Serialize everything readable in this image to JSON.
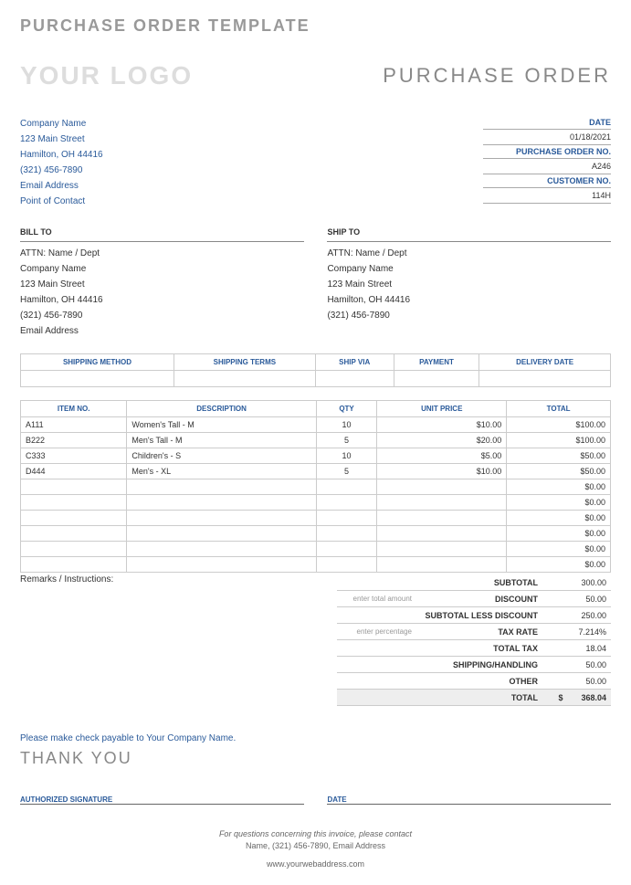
{
  "page_title": "PURCHASE ORDER TEMPLATE",
  "logo_text": "YOUR LOGO",
  "doc_title": "PURCHASE ORDER",
  "company": {
    "name": "Company Name",
    "street": "123 Main Street",
    "city": "Hamilton, OH 44416",
    "phone": "(321) 456-7890",
    "email": "Email Address",
    "contact": "Point of Contact"
  },
  "meta": {
    "date_label": "DATE",
    "date": "01/18/2021",
    "po_label": "PURCHASE ORDER NO.",
    "po": "A246",
    "cust_label": "CUSTOMER NO.",
    "cust": "114H"
  },
  "bill": {
    "title": "BILL TO",
    "attn": "ATTN: Name / Dept",
    "company": "Company Name",
    "street": "123 Main Street",
    "city": "Hamilton, OH 44416",
    "phone": "(321) 456-7890",
    "email": "Email Address"
  },
  "ship": {
    "title": "SHIP TO",
    "attn": "ATTN: Name / Dept",
    "company": "Company Name",
    "street": "123 Main Street",
    "city": "Hamilton, OH 44416",
    "phone": "(321) 456-7890"
  },
  "ship_headers": [
    "SHIPPING METHOD",
    "SHIPPING TERMS",
    "SHIP VIA",
    "PAYMENT",
    "DELIVERY DATE"
  ],
  "item_headers": [
    "ITEM NO.",
    "DESCRIPTION",
    "QTY",
    "UNIT PRICE",
    "TOTAL"
  ],
  "items": [
    {
      "no": "A111",
      "desc": "Women's Tall - M",
      "qty": "10",
      "price": "$10.00",
      "total": "$100.00"
    },
    {
      "no": "B222",
      "desc": "Men's Tall - M",
      "qty": "5",
      "price": "$20.00",
      "total": "$100.00"
    },
    {
      "no": "C333",
      "desc": "Children's - S",
      "qty": "10",
      "price": "$5.00",
      "total": "$50.00"
    },
    {
      "no": "D444",
      "desc": "Men's - XL",
      "qty": "5",
      "price": "$10.00",
      "total": "$50.00"
    },
    {
      "no": "",
      "desc": "",
      "qty": "",
      "price": "",
      "total": "$0.00"
    },
    {
      "no": "",
      "desc": "",
      "qty": "",
      "price": "",
      "total": "$0.00"
    },
    {
      "no": "",
      "desc": "",
      "qty": "",
      "price": "",
      "total": "$0.00"
    },
    {
      "no": "",
      "desc": "",
      "qty": "",
      "price": "",
      "total": "$0.00"
    },
    {
      "no": "",
      "desc": "",
      "qty": "",
      "price": "",
      "total": "$0.00"
    },
    {
      "no": "",
      "desc": "",
      "qty": "",
      "price": "",
      "total": "$0.00"
    }
  ],
  "remarks_label": "Remarks / Instructions:",
  "totals": {
    "subtotal_lbl": "SUBTOTAL",
    "subtotal": "300.00",
    "discount_hint": "enter total amount",
    "discount_lbl": "DISCOUNT",
    "discount": "50.00",
    "subless_lbl": "SUBTOTAL LESS DISCOUNT",
    "subless": "250.00",
    "tax_hint": "enter percentage",
    "tax_lbl": "TAX RATE",
    "tax": "7.214%",
    "totaltax_lbl": "TOTAL TAX",
    "totaltax": "18.04",
    "shiphand_lbl": "SHIPPING/HANDLING",
    "shiphand": "50.00",
    "other_lbl": "OTHER",
    "other": "50.00",
    "total_lbl": "TOTAL",
    "total_cur": "$",
    "total": "368.04"
  },
  "check_note": "Please make check payable to Your Company Name.",
  "thanks": "THANK YOU",
  "sig_auth": "AUTHORIZED SIGNATURE",
  "sig_date": "DATE",
  "footer1": "For questions concerning this invoice, please contact",
  "footer2": "Name, (321) 456-7890, Email Address",
  "footer3": "www.yourwebaddress.com"
}
